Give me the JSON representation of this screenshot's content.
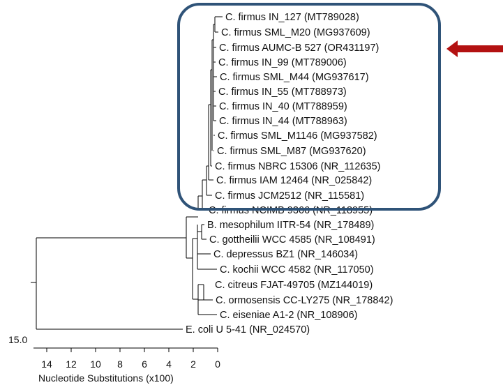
{
  "tree": {
    "axis_ticks": [
      "14",
      "12",
      "10",
      "8",
      "6",
      "4",
      "2",
      "0"
    ],
    "axis_label": "Nucleotide Substitutions (x100)",
    "scale_label": "15.0",
    "taxa": [
      "C. firmus IN_127 (MT789028)",
      "C. firmus SML_M20 (MG937609)",
      "C. firmus AUMC-B 527 (OR431197)",
      "C. firmus IN_99 (MT789006)",
      "C. firmus SML_M44 (MG937617)",
      "C. firmus IN_55 (MT788973)",
      "C. firmus IN_40 (MT788959)",
      "C. firmus IN_44 (MT788963)",
      "C. firmus SML_M1146 (MG937582)",
      "C. firmus SML_M87 (MG937620)",
      "C. firmus NBRC 15306 (NR_112635)",
      "C. firmus IAM 12464 (NR_025842)",
      "C. firmus JCM2512 (NR_115581)",
      "C. firmus NCIMB 9366 (NR_118955)",
      "B. mesophilum IITR-54 (NR_178489)",
      "C. gottheilii WCC 4585 (NR_108491)",
      "C. depressus BZ1 (NR_146034)",
      "C. kochii WCC 4582 (NR_117050)",
      "C. citreus FJAT-49705 (MZ144019)",
      "C. ormosensis CC-LY275 (NR_178842)",
      "C. eiseniae A1-2 (NR_108906)",
      "E. coli U 5-41 (NR_024570)"
    ]
  },
  "highlight": {
    "box_color": "#2f5378",
    "arrow_color": "#b31111",
    "highlighted_taxon_index": 2
  }
}
